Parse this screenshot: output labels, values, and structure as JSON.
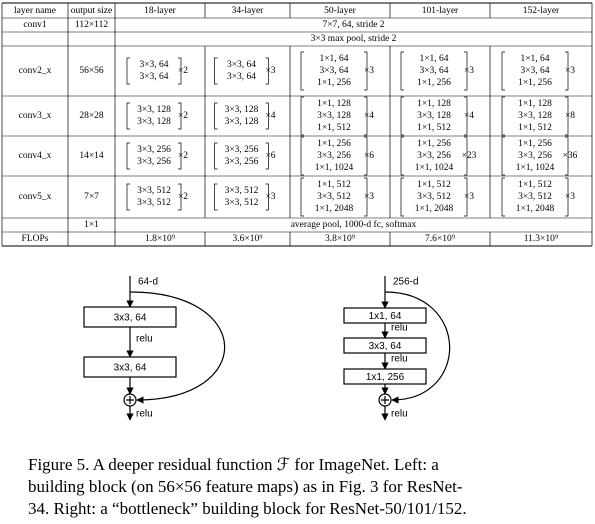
{
  "table": {
    "header": [
      "layer name",
      "output size",
      "18-layer",
      "34-layer",
      "50-layer",
      "101-layer",
      "152-layer"
    ],
    "rows": [
      {
        "name": "conv1",
        "size": "112×112",
        "span": "7×7, 64, stride 2"
      },
      {
        "span": "3×3 max pool, stride 2"
      },
      {
        "name": "conv2_x",
        "size": "56×56",
        "blocks": [
          {
            "lines": [
              "3×3, 64",
              "3×3, 64"
            ],
            "repeat": "×2"
          },
          {
            "lines": [
              "3×3, 64",
              "3×3, 64"
            ],
            "repeat": "×3"
          },
          {
            "lines": [
              "1×1, 64",
              "3×3, 64",
              "1×1, 256"
            ],
            "repeat": "×3"
          },
          {
            "lines": [
              "1×1, 64",
              "3×3, 64",
              "1×1, 256"
            ],
            "repeat": "×3"
          },
          {
            "lines": [
              "1×1, 64",
              "3×3, 64",
              "1×1, 256"
            ],
            "repeat": "×3"
          }
        ]
      },
      {
        "name": "conv3_x",
        "size": "28×28",
        "blocks": [
          {
            "lines": [
              "3×3, 128",
              "3×3, 128"
            ],
            "repeat": "×2"
          },
          {
            "lines": [
              "3×3, 128",
              "3×3, 128"
            ],
            "repeat": "×4"
          },
          {
            "lines": [
              "1×1, 128",
              "3×3, 128",
              "1×1, 512"
            ],
            "repeat": "×4"
          },
          {
            "lines": [
              "1×1, 128",
              "3×3, 128",
              "1×1, 512"
            ],
            "repeat": "×4"
          },
          {
            "lines": [
              "1×1, 128",
              "3×3, 128",
              "1×1, 512"
            ],
            "repeat": "×8"
          }
        ]
      },
      {
        "name": "conv4_x",
        "size": "14×14",
        "blocks": [
          {
            "lines": [
              "3×3, 256",
              "3×3, 256"
            ],
            "repeat": "×2"
          },
          {
            "lines": [
              "3×3, 256",
              "3×3, 256"
            ],
            "repeat": "×6"
          },
          {
            "lines": [
              "1×1, 256",
              "3×3, 256",
              "1×1, 1024"
            ],
            "repeat": "×6"
          },
          {
            "lines": [
              "1×1, 256",
              "3×3, 256",
              "1×1, 1024"
            ],
            "repeat": "×23"
          },
          {
            "lines": [
              "1×1, 256",
              "3×3, 256",
              "1×1, 1024"
            ],
            "repeat": "×36"
          }
        ]
      },
      {
        "name": "conv5_x",
        "size": "7×7",
        "blocks": [
          {
            "lines": [
              "3×3, 512",
              "3×3, 512"
            ],
            "repeat": "×2"
          },
          {
            "lines": [
              "3×3, 512",
              "3×3, 512"
            ],
            "repeat": "×3"
          },
          {
            "lines": [
              "1×1, 512",
              "3×3, 512",
              "1×1, 2048"
            ],
            "repeat": "×3"
          },
          {
            "lines": [
              "1×1, 512",
              "3×3, 512",
              "1×1, 2048"
            ],
            "repeat": "×3"
          },
          {
            "lines": [
              "1×1, 512",
              "3×3, 512",
              "1×1, 2048"
            ],
            "repeat": "×3"
          }
        ]
      },
      {
        "size": "1×1",
        "span": "average pool, 1000-d fc, softmax"
      },
      {
        "name": "FLOPs",
        "cells": [
          "1.8×10⁹",
          "3.6×10⁹",
          "3.8×10⁹",
          "7.6×10⁹",
          "11.3×10⁹"
        ]
      }
    ]
  },
  "diagrams": {
    "left": {
      "input": "64-d",
      "boxes": [
        "3x3, 64",
        "3x3, 64"
      ],
      "relus": [
        "relu",
        "relu"
      ]
    },
    "right": {
      "input": "256-d",
      "boxes": [
        "1x1, 64",
        "3x3, 64",
        "1x1, 256"
      ],
      "relus": [
        "relu",
        "relu",
        "relu"
      ]
    }
  },
  "caption": [
    "Figure 5. A deeper residual function ℱ for ImageNet. Left: a",
    "building block (on 56×56 feature maps) as in Fig. 3 for ResNet-",
    "34. Right: a “bottleneck” building block for ResNet-50/101/152."
  ]
}
